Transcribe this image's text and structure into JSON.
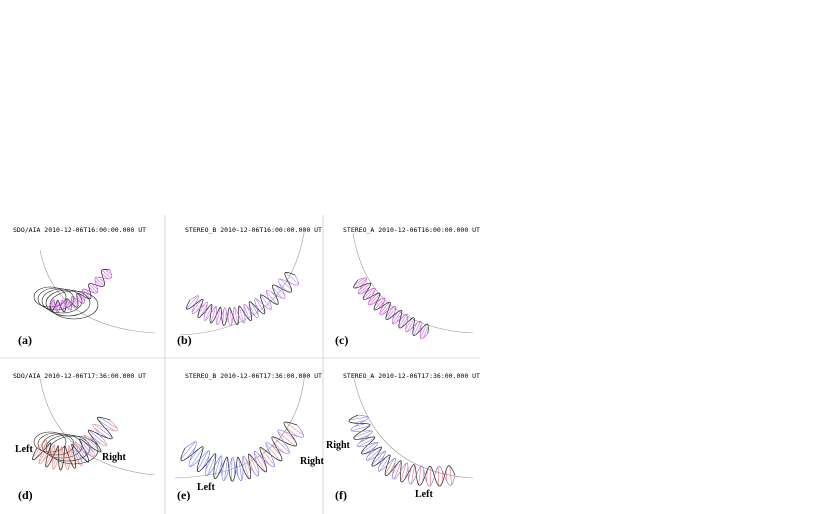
{
  "panels": [
    {
      "header": "SDO/AIA 2010-12-06T16:00:00.000 UT",
      "label": "(a)"
    },
    {
      "header": "STEREO_B 2010-12-06T16:00:00.000 UT",
      "label": "(b)"
    },
    {
      "header": "STEREO_A 2010-12-06T16:00:00.000 UT",
      "label": "(c)"
    },
    {
      "header": "SDO/AIA 2010-12-06T17:36:00.000 UT",
      "label": "(d)",
      "annotations": [
        "Left",
        "Right"
      ]
    },
    {
      "header": "STEREO_B 2010-12-06T17:36:00.000 UT",
      "label": "(e)",
      "annotations": [
        "Left",
        "Right"
      ]
    },
    {
      "header": "STEREO_A 2010-12-06T17:36:00.000 UT",
      "label": "(f)",
      "annotations": [
        "Right",
        "Left"
      ]
    }
  ]
}
